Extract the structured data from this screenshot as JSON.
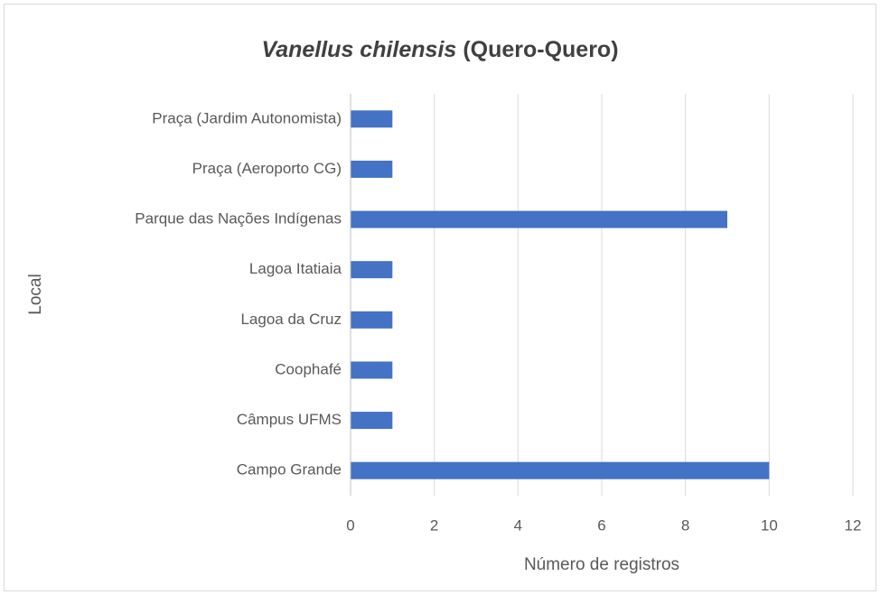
{
  "chart_data": {
    "type": "barh",
    "title": [
      "Vanellus chilensis",
      "(Quero-Quero)"
    ],
    "xlabel": "Número de registros",
    "ylabel": "Local",
    "categories": [
      "Praça (Jardim Autonomista)",
      "Praça (Aeroporto CG)",
      "Parque das Nações Indígenas",
      "Lagoa Itatiaia",
      "Lagoa da Cruz",
      "Coophafé",
      "Câmpus UFMS",
      "Campo Grande"
    ],
    "values": [
      1,
      1,
      9,
      1,
      1,
      1,
      1,
      10
    ],
    "color": "#4472c4",
    "xlim": [
      0,
      12
    ],
    "xticks": [
      0,
      2,
      4,
      6,
      8,
      10,
      12
    ],
    "grid": true
  }
}
